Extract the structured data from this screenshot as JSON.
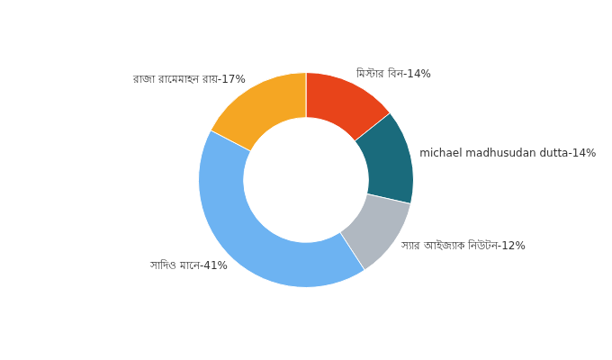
{
  "chart_data": {
    "type": "doughnut",
    "values": [
      14,
      14,
      12,
      41,
      17
    ],
    "value_labels": [
      "মিস্টার বিন-14%",
      "michael madhusudan dutta-14%",
      "স্যার আইজ্যাক নিউটন-12%",
      "সাদিও মানে-41%",
      "রাজা রামেমাহন রায়-17%"
    ],
    "colors": [
      "#e8441a",
      "#1a6b7c",
      "#b0b8c1",
      "#6db3f2",
      "#f5a623"
    ],
    "data_labels": true
  }
}
